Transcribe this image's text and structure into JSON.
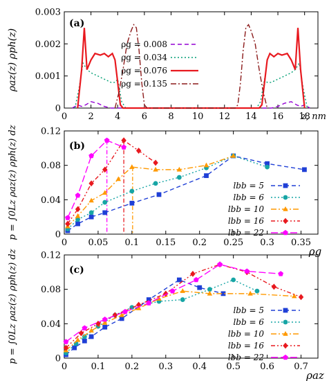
{
  "chart_data": [
    {
      "panel_label": "(a)",
      "type": "line",
      "ylabel": "ρaz(z) ρph(z)",
      "xlabel": "z, nm",
      "xlim": [
        0,
        19
      ],
      "ylim": [
        0,
        0.003
      ],
      "x_ticks": [
        "0",
        "2",
        "4",
        "6",
        "8",
        "10",
        "12",
        "14",
        "16",
        "18"
      ],
      "y_ticks": [
        "0",
        "0.001",
        "0.002",
        "0.003"
      ],
      "legend_position": "center",
      "series": [
        {
          "name": "ρg = 0.008",
          "color": "#9400d3",
          "dash": "6,4",
          "points": [
            [
              0.6,
              0
            ],
            [
              1.0,
              0.0001
            ],
            [
              1.3,
              5e-05
            ],
            [
              1.6,
              0.0001
            ],
            [
              2.0,
              0.0002
            ],
            [
              2.5,
              0.00015
            ],
            [
              3.0,
              5e-05
            ],
            [
              3.5,
              0
            ],
            [
              15.5,
              0
            ],
            [
              16.0,
              5e-05
            ],
            [
              16.5,
              0.00015
            ],
            [
              17.0,
              0.0002
            ],
            [
              17.4,
              0.0001
            ],
            [
              17.7,
              5e-05
            ],
            [
              18.0,
              0.0001
            ],
            [
              18.4,
              0
            ]
          ]
        },
        {
          "name": "ρg = 0.034",
          "color": "#009e73",
          "dash": "2,3",
          "points": [
            [
              0.8,
              0
            ],
            [
              1.1,
              0.0006
            ],
            [
              1.4,
              0.0014
            ],
            [
              1.7,
              0.0012
            ],
            [
              2.0,
              0.0011
            ],
            [
              2.5,
              0.001
            ],
            [
              3.0,
              0.0009
            ],
            [
              3.5,
              0.0008
            ],
            [
              3.8,
              0.0008
            ],
            [
              4.0,
              0.0009
            ],
            [
              4.3,
              0.0002
            ],
            [
              4.6,
              0
            ],
            [
              14.4,
              0
            ],
            [
              14.7,
              0.0002
            ],
            [
              15.0,
              0.0009
            ],
            [
              15.2,
              0.0008
            ],
            [
              15.5,
              0.0008
            ],
            [
              16.0,
              0.0009
            ],
            [
              16.5,
              0.001
            ],
            [
              17.0,
              0.0011
            ],
            [
              17.3,
              0.0012
            ],
            [
              17.6,
              0.0014
            ],
            [
              17.9,
              0.0006
            ],
            [
              18.2,
              0
            ]
          ]
        },
        {
          "name": "ρg = 0.076",
          "color": "#e8191f",
          "dash": "",
          "points": [
            [
              1.0,
              0
            ],
            [
              1.3,
              0.0012
            ],
            [
              1.5,
              0.0025
            ],
            [
              1.7,
              0.0012
            ],
            [
              2.0,
              0.0015
            ],
            [
              2.3,
              0.0017
            ],
            [
              2.7,
              0.00165
            ],
            [
              3.0,
              0.0017
            ],
            [
              3.3,
              0.0016
            ],
            [
              3.6,
              0.0017
            ],
            [
              3.8,
              0.0015
            ],
            [
              4.0,
              0.0008
            ],
            [
              4.2,
              0.0001
            ],
            [
              4.4,
              0
            ],
            [
              14.6,
              0
            ],
            [
              14.8,
              0.0001
            ],
            [
              15.0,
              0.0008
            ],
            [
              15.2,
              0.0015
            ],
            [
              15.4,
              0.0017
            ],
            [
              15.7,
              0.0016
            ],
            [
              16.0,
              0.0017
            ],
            [
              16.3,
              0.00165
            ],
            [
              16.7,
              0.0017
            ],
            [
              17.0,
              0.0015
            ],
            [
              17.3,
              0.0012
            ],
            [
              17.5,
              0.0025
            ],
            [
              17.7,
              0.0012
            ],
            [
              18.0,
              0
            ]
          ]
        },
        {
          "name": "ρg = 0.135",
          "color": "#8b1a1a",
          "dash": "8,3,2,3",
          "points": [
            [
              3.8,
              0
            ],
            [
              4.1,
              0.0005
            ],
            [
              4.4,
              0.0012
            ],
            [
              4.7,
              0.002
            ],
            [
              5.0,
              0.0024
            ],
            [
              5.2,
              0.0026
            ],
            [
              5.4,
              0.0025
            ],
            [
              5.6,
              0.0018
            ],
            [
              5.8,
              0.0008
            ],
            [
              6.0,
              0.0001
            ],
            [
              6.2,
              0
            ],
            [
              12.8,
              0
            ],
            [
              13.0,
              0.0001
            ],
            [
              13.2,
              0.0008
            ],
            [
              13.4,
              0.0018
            ],
            [
              13.6,
              0.0025
            ],
            [
              13.8,
              0.0026
            ],
            [
              14.0,
              0.0024
            ],
            [
              14.3,
              0.002
            ],
            [
              14.6,
              0.0012
            ],
            [
              14.9,
              0.0005
            ],
            [
              15.2,
              0
            ]
          ]
        }
      ]
    },
    {
      "panel_label": "(b)",
      "type": "line",
      "ylabel": "p = ∫0Lz ρaz(z) ρph(z) dz",
      "xlabel": "ρg",
      "xlim": [
        0,
        0.375
      ],
      "ylim": [
        0,
        0.12
      ],
      "x_ticks": [
        "0",
        "0.05",
        "0.1",
        "0.15",
        "0.2",
        "0.25",
        "0.3",
        "0.35"
      ],
      "y_ticks": [
        "0",
        "0.04",
        "0.08",
        "0.12"
      ],
      "legend_position": "right",
      "vlines": [
        {
          "x": 0.063,
          "y": 0.109,
          "color": "#ff00ff"
        },
        {
          "x": 0.088,
          "y": 0.109,
          "color": "#e8191f"
        },
        {
          "x": 0.101,
          "y": 0.078,
          "color": "#ff9900"
        }
      ],
      "series": [
        {
          "name": "lbb = 5",
          "color": "#1f3fd6",
          "marker": "square",
          "dash": "6,4",
          "points": [
            [
              0.005,
              0.004
            ],
            [
              0.02,
              0.012
            ],
            [
              0.04,
              0.02
            ],
            [
              0.06,
              0.025
            ],
            [
              0.1,
              0.036
            ],
            [
              0.14,
              0.046
            ],
            [
              0.21,
              0.068
            ],
            [
              0.25,
              0.091
            ],
            [
              0.3,
              0.082
            ],
            [
              0.355,
              0.075
            ]
          ]
        },
        {
          "name": "lbb = 6",
          "color": "#17a5a5",
          "marker": "circle",
          "dash": "2,3",
          "points": [
            [
              0.005,
              0.006
            ],
            [
              0.02,
              0.017
            ],
            [
              0.04,
              0.025
            ],
            [
              0.06,
              0.037
            ],
            [
              0.1,
              0.05
            ],
            [
              0.135,
              0.059
            ],
            [
              0.17,
              0.066
            ],
            [
              0.21,
              0.077
            ],
            [
              0.25,
              0.091
            ],
            [
              0.3,
              0.078
            ]
          ]
        },
        {
          "name": "lbb = 10",
          "color": "#ff9900",
          "marker": "triangle",
          "dash": "8,3,2,3",
          "points": [
            [
              0.005,
              0.009
            ],
            [
              0.02,
              0.021
            ],
            [
              0.04,
              0.039
            ],
            [
              0.06,
              0.048
            ],
            [
              0.08,
              0.064
            ],
            [
              0.1,
              0.078
            ],
            [
              0.135,
              0.075
            ],
            [
              0.17,
              0.075
            ],
            [
              0.21,
              0.08
            ],
            [
              0.25,
              0.091
            ]
          ]
        },
        {
          "name": "lbb = 16",
          "color": "#e8191f",
          "marker": "diamond",
          "dash": "6,3,2,3,2,3",
          "points": [
            [
              0.005,
              0.012
            ],
            [
              0.02,
              0.029
            ],
            [
              0.04,
              0.059
            ],
            [
              0.06,
              0.075
            ],
            [
              0.088,
              0.109
            ],
            [
              0.11,
              0.097
            ],
            [
              0.135,
              0.083
            ]
          ]
        },
        {
          "name": "lbb = 22",
          "color": "#ff00ff",
          "marker": "pentagon",
          "dash": "10,4",
          "points": [
            [
              0.005,
              0.019
            ],
            [
              0.02,
              0.045
            ],
            [
              0.04,
              0.091
            ],
            [
              0.063,
              0.109
            ],
            [
              0.088,
              0.101
            ]
          ]
        }
      ]
    },
    {
      "panel_label": "(c)",
      "type": "line",
      "ylabel": "p = ∫0Lz ρaz(z) ρph(z) dz",
      "xlabel": "ρaz",
      "xlim": [
        0,
        0.75
      ],
      "ylim": [
        0,
        0.12
      ],
      "x_ticks": [
        "0",
        "0.1",
        "0.2",
        "0.3",
        "0.4",
        "0.5",
        "0.6",
        "0.7"
      ],
      "y_ticks": [
        "0",
        "0.04",
        "0.08",
        "0.12"
      ],
      "legend_position": "right",
      "series": [
        {
          "name": "lbb = 5",
          "color": "#1f3fd6",
          "marker": "square",
          "dash": "6,4",
          "points": [
            [
              0.005,
              0.004
            ],
            [
              0.03,
              0.012
            ],
            [
              0.06,
              0.02
            ],
            [
              0.08,
              0.025
            ],
            [
              0.12,
              0.036
            ],
            [
              0.17,
              0.046
            ],
            [
              0.25,
              0.068
            ],
            [
              0.34,
              0.091
            ],
            [
              0.4,
              0.082
            ],
            [
              0.47,
              0.075
            ]
          ]
        },
        {
          "name": "lbb = 6",
          "color": "#17a5a5",
          "marker": "circle",
          "dash": "2,3",
          "points": [
            [
              0.005,
              0.006
            ],
            [
              0.035,
              0.017
            ],
            [
              0.06,
              0.025
            ],
            [
              0.1,
              0.037
            ],
            [
              0.15,
              0.05
            ],
            [
              0.2,
              0.059
            ],
            [
              0.28,
              0.066
            ],
            [
              0.35,
              0.068
            ],
            [
              0.43,
              0.08
            ],
            [
              0.5,
              0.091
            ],
            [
              0.57,
              0.078
            ]
          ]
        },
        {
          "name": "lbb = 10",
          "color": "#ff9900",
          "marker": "triangle",
          "dash": "8,3,2,3",
          "points": [
            [
              0.005,
              0.009
            ],
            [
              0.04,
              0.021
            ],
            [
              0.08,
              0.032
            ],
            [
              0.12,
              0.041
            ],
            [
              0.17,
              0.05
            ],
            [
              0.22,
              0.058
            ],
            [
              0.28,
              0.069
            ],
            [
              0.35,
              0.078
            ],
            [
              0.43,
              0.075
            ],
            [
              0.55,
              0.075
            ],
            [
              0.68,
              0.072
            ]
          ]
        },
        {
          "name": "lbb = 16",
          "color": "#e8191f",
          "marker": "diamond",
          "dash": "6,3,2,3,2,3",
          "points": [
            [
              0.005,
              0.012
            ],
            [
              0.05,
              0.029
            ],
            [
              0.1,
              0.04
            ],
            [
              0.15,
              0.05
            ],
            [
              0.22,
              0.062
            ],
            [
              0.3,
              0.075
            ],
            [
              0.38,
              0.098
            ],
            [
              0.46,
              0.109
            ],
            [
              0.54,
              0.1
            ],
            [
              0.62,
              0.083
            ],
            [
              0.7,
              0.071
            ]
          ]
        },
        {
          "name": "lbb = 22",
          "color": "#ff00ff",
          "marker": "pentagon",
          "dash": "10,4",
          "points": [
            [
              0.005,
              0.019
            ],
            [
              0.06,
              0.035
            ],
            [
              0.12,
              0.045
            ],
            [
              0.18,
              0.054
            ],
            [
              0.25,
              0.064
            ],
            [
              0.32,
              0.078
            ],
            [
              0.39,
              0.091
            ],
            [
              0.46,
              0.109
            ],
            [
              0.54,
              0.101
            ],
            [
              0.64,
              0.098
            ]
          ]
        }
      ]
    }
  ]
}
